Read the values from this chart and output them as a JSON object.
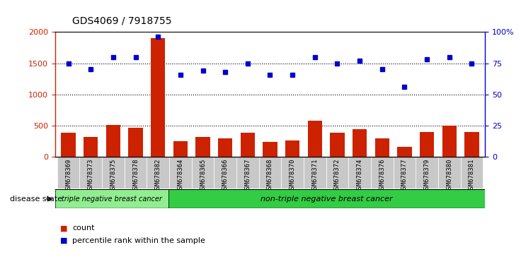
{
  "title": "GDS4069 / 7918755",
  "samples": [
    "GSM678369",
    "GSM678373",
    "GSM678375",
    "GSM678378",
    "GSM678382",
    "GSM678364",
    "GSM678365",
    "GSM678366",
    "GSM678367",
    "GSM678368",
    "GSM678370",
    "GSM678371",
    "GSM678372",
    "GSM678374",
    "GSM678376",
    "GSM678377",
    "GSM678379",
    "GSM678380",
    "GSM678381"
  ],
  "counts": [
    390,
    320,
    510,
    470,
    1900,
    255,
    325,
    300,
    390,
    240,
    260,
    580,
    385,
    440,
    300,
    165,
    400,
    500,
    400
  ],
  "percentile": [
    75,
    70,
    80,
    80,
    96,
    66,
    69,
    68,
    75,
    66,
    66,
    80,
    75,
    77,
    70,
    56,
    78,
    80,
    75
  ],
  "bar_color": "#cc2200",
  "dot_color": "#0000cc",
  "left_ylim": [
    0,
    2000
  ],
  "right_ylim": [
    0,
    100
  ],
  "left_yticks": [
    0,
    500,
    1000,
    1500,
    2000
  ],
  "right_yticks": [
    0,
    25,
    50,
    75,
    100
  ],
  "right_yticklabels": [
    "0",
    "25",
    "50",
    "75",
    "100%"
  ],
  "group1_label": "triple negative breast cancer",
  "group2_label": "non-triple negative breast cancer",
  "group1_count": 5,
  "disease_state_label": "disease state",
  "legend_count_label": "count",
  "legend_pct_label": "percentile rank within the sample",
  "bg_color": "#ffffff",
  "tick_label_bg": "#c8c8c8",
  "group1_bg": "#90ee90",
  "group2_bg": "#33cc44",
  "dotted_line_color": "#000000",
  "title_fontsize": 10,
  "axis_fontsize": 7
}
